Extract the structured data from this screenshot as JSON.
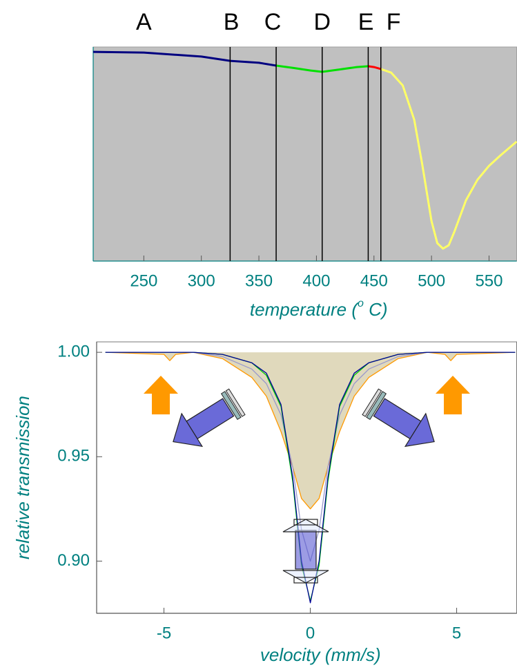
{
  "chart_data": [
    {
      "type": "line",
      "xlabel": {
        "text": "temperature (",
        "sup": "o",
        "after": " C)"
      },
      "xlim": [
        206,
        574
      ],
      "xticks": [
        250,
        300,
        350,
        400,
        450,
        500,
        550
      ],
      "ylim": [
        0,
        100
      ],
      "background": "#c0c0c0",
      "series": [
        {
          "color": "#000080",
          "x": [
            206,
            250,
            300,
            325,
            350,
            365
          ],
          "values": [
            97.7,
            97.4,
            95.5,
            93.5,
            92.6,
            91.3
          ]
        },
        {
          "color": "#00e000",
          "x": [
            365,
            380,
            395,
            405,
            420,
            435,
            445
          ],
          "values": [
            91.3,
            90.2,
            89.0,
            88.4,
            89.5,
            90.6,
            91.0
          ]
        },
        {
          "color": "#ff0000",
          "x": [
            445,
            450,
            456
          ],
          "values": [
            91.0,
            90.6,
            89.7
          ]
        },
        {
          "color": "#ffff66",
          "x": [
            456,
            465,
            475,
            485,
            492,
            500,
            505,
            510,
            515,
            520,
            530,
            540,
            550,
            560,
            574
          ],
          "values": [
            89.7,
            88.0,
            82.0,
            66.0,
            45.0,
            18.7,
            8.4,
            5.8,
            7.4,
            13.9,
            28.4,
            38.0,
            44.5,
            49.4,
            55.8
          ]
        }
      ],
      "vlines": [
        325,
        365,
        405,
        445,
        456
      ],
      "annotations": [
        {
          "text": "A",
          "x": 250
        },
        {
          "text": "B",
          "x": 326
        },
        {
          "text": "C",
          "x": 362
        },
        {
          "text": "D",
          "x": 405
        },
        {
          "text": "E",
          "x": 443
        },
        {
          "text": "F",
          "x": 467
        }
      ]
    },
    {
      "type": "line",
      "xlabel": {
        "text": "velocity (mm/s)"
      },
      "ylabel": "relative transmission",
      "xlim": [
        -7.3,
        7.05
      ],
      "xticks": [
        -5,
        0,
        5
      ],
      "ylim": [
        0.875,
        1.005
      ],
      "yticks": [
        {
          "value": 0.9,
          "label": "0.90"
        },
        {
          "value": 0.95,
          "label": "0.95"
        },
        {
          "value": 1.0,
          "label": "1.00"
        }
      ],
      "x": [
        -7,
        -5,
        -4.8,
        -4.6,
        -4,
        -3,
        -2,
        -1.5,
        -1,
        -0.6,
        -0.3,
        0,
        0.3,
        0.6,
        1,
        1.5,
        2,
        3,
        4,
        4.6,
        4.8,
        5,
        7
      ],
      "series": [
        {
          "color": "#ff9900",
          "fill": "#ddd5b5",
          "values": [
            1,
            0.999,
            0.996,
            0.999,
            1,
            0.997,
            0.988,
            0.979,
            0.962,
            0.945,
            0.93,
            0.925,
            0.93,
            0.945,
            0.962,
            0.979,
            0.988,
            0.997,
            1,
            0.999,
            0.996,
            0.999,
            1
          ]
        },
        {
          "color": "#9999cc",
          "values": [
            1,
            1,
            1,
            1,
            1,
            0.998,
            0.992,
            0.985,
            0.97,
            0.945,
            0.915,
            0.9,
            0.915,
            0.945,
            0.97,
            0.985,
            0.992,
            0.998,
            1,
            1,
            1,
            1,
            1
          ]
        },
        {
          "color": "#00cc00",
          "values": [
            1,
            1,
            1,
            1,
            1,
            0.999,
            0.995,
            0.989,
            0.974,
            0.938,
            0.898,
            0.881,
            0.898,
            0.938,
            0.974,
            0.989,
            0.995,
            0.999,
            1,
            1,
            1,
            1,
            1
          ]
        },
        {
          "color": "#000099",
          "values": [
            1,
            1,
            1,
            1,
            1,
            0.999,
            0.995,
            0.99,
            0.975,
            0.94,
            0.9,
            0.88,
            0.9,
            0.94,
            0.975,
            0.99,
            0.995,
            0.999,
            1,
            1,
            1,
            1,
            1
          ]
        }
      ]
    }
  ]
}
